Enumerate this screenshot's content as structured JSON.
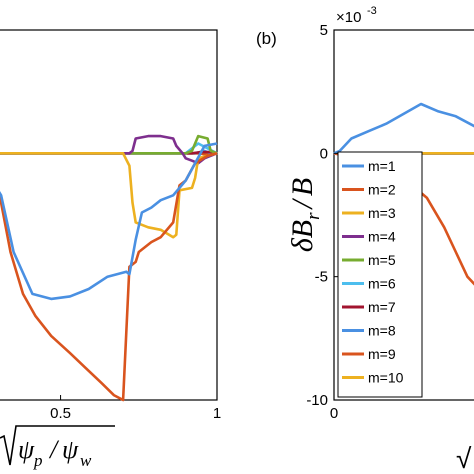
{
  "chart_data": [
    {
      "type": "line",
      "panel": "a",
      "xlim": [
        0.3,
        1.0
      ],
      "ylim": [
        -10,
        5
      ],
      "x_ticks": [
        "0.5",
        "1"
      ],
      "x_tick_values": [
        0.5,
        1.0
      ],
      "xlabel_parts": {
        "radical": "√",
        "num": "ψ",
        "num_sub": "p",
        "den": "ψ",
        "den_sub": "w"
      },
      "series": [
        {
          "name": "m=1",
          "color": "#4a90e2",
          "x": [
            0.3,
            0.31,
            0.35,
            0.41,
            0.47,
            0.53,
            0.59,
            0.65,
            0.71,
            0.72,
            0.74,
            0.76,
            0.79,
            0.82,
            0.86,
            0.88,
            0.9,
            0.93,
            0.96,
            1.0
          ],
          "y": [
            -1.5,
            -1.7,
            -4.0,
            -5.7,
            -5.9,
            -5.8,
            -5.5,
            -5.0,
            -4.8,
            -4.9,
            -3.5,
            -2.4,
            -2.2,
            -1.9,
            -1.7,
            -1.4,
            -1.1,
            -0.4,
            0.3,
            0.4
          ]
        },
        {
          "name": "m=2",
          "color": "#d9541e",
          "x": [
            0.3,
            0.31,
            0.34,
            0.38,
            0.42,
            0.47,
            0.53,
            0.58,
            0.63,
            0.67,
            0.7,
            0.72,
            0.74,
            0.75,
            0.79,
            0.82,
            0.86,
            0.88,
            0.9,
            0.93,
            0.97,
            1.0
          ],
          "y": [
            -1.6,
            -2.0,
            -4.0,
            -5.7,
            -6.6,
            -7.4,
            -8.1,
            -8.7,
            -9.3,
            -9.8,
            -10.0,
            -4.6,
            -4.4,
            -4.0,
            -3.6,
            -3.4,
            -2.8,
            -1.3,
            -1.1,
            -0.4,
            -0.1,
            0.0
          ]
        },
        {
          "name": "m=3",
          "color": "#edb120",
          "x": [
            0.3,
            0.68,
            0.7,
            0.72,
            0.73,
            0.74,
            0.78,
            0.82,
            0.86,
            0.87,
            0.88,
            0.92,
            0.93,
            0.94,
            0.97,
            1.0
          ],
          "y": [
            0.0,
            0.0,
            0.0,
            -0.5,
            -2.0,
            -2.8,
            -3.0,
            -3.1,
            -3.4,
            -3.3,
            -1.5,
            -1.4,
            -1.0,
            -0.2,
            -0.1,
            0.0
          ]
        },
        {
          "name": "m=4",
          "color": "#7e2f8e",
          "x": [
            0.3,
            0.72,
            0.73,
            0.74,
            0.78,
            0.82,
            0.86,
            0.87,
            0.89,
            0.9,
            0.92,
            0.94,
            0.96,
            0.98,
            1.0
          ],
          "y": [
            0.0,
            0.0,
            0.1,
            0.6,
            0.7,
            0.7,
            0.6,
            0.3,
            0.0,
            -0.2,
            -0.3,
            -0.4,
            -0.2,
            -0.1,
            0.0
          ]
        },
        {
          "name": "m=5",
          "color": "#77ac30",
          "x": [
            0.3,
            0.9,
            0.92,
            0.94,
            0.97,
            0.98,
            1.0
          ],
          "y": [
            0.0,
            0.0,
            0.1,
            0.7,
            0.6,
            0.1,
            0.0
          ]
        },
        {
          "name": "m=6",
          "color": "#4dbeee",
          "x": [
            0.3,
            0.9,
            0.92,
            0.94,
            0.97,
            1.0
          ],
          "y": [
            0.0,
            0.0,
            0.2,
            0.4,
            0.2,
            0.0
          ]
        },
        {
          "name": "m=7",
          "color": "#a2142f",
          "x": [
            0.3,
            0.92,
            0.95,
            0.98,
            1.0
          ],
          "y": [
            0.0,
            0.0,
            0.05,
            0.05,
            0.0
          ]
        },
        {
          "name": "m=8",
          "color": "#4a90e2",
          "x": [
            0.3,
            0.93,
            0.96,
            0.98,
            1.0
          ],
          "y": [
            0.0,
            0.0,
            0.1,
            0.0,
            0.0
          ]
        },
        {
          "name": "m=9",
          "color": "#d9541e",
          "x": [
            0.3,
            0.94,
            0.97,
            1.0
          ],
          "y": [
            0.0,
            0.0,
            -0.05,
            0.0
          ]
        },
        {
          "name": "m=10",
          "color": "#edb120",
          "x": [
            0.3,
            0.95,
            0.98,
            1.0
          ],
          "y": [
            0.0,
            0.0,
            0.05,
            0.0
          ]
        }
      ]
    },
    {
      "type": "line",
      "panel": "b",
      "panel_label": "(b)",
      "xlim": [
        0,
        0.25
      ],
      "ylim": [
        -10,
        5
      ],
      "exponent_label": "×10",
      "exponent": "-3",
      "y_ticks": [
        "5",
        "0",
        "-5",
        "-10"
      ],
      "y_tick_values": [
        5,
        0,
        -5,
        -10
      ],
      "x_ticks": [
        "0"
      ],
      "x_tick_values": [
        0
      ],
      "ylabel_parts": {
        "delta": "δ",
        "b": "B",
        "sub": "r",
        "slash": "/",
        "b2": "B"
      },
      "xlabel_visible": "√",
      "legend": [
        "m=1",
        "m=2",
        "m=3",
        "m=4",
        "m=5",
        "m=6",
        "m=7",
        "m=8",
        "m=9",
        "m=10"
      ],
      "legend_placement": "left",
      "series": [
        {
          "name": "m=1",
          "color": "#4a90e2",
          "x": [
            0.0,
            0.01,
            0.03,
            0.06,
            0.09,
            0.12,
            0.15,
            0.18,
            0.21,
            0.25
          ],
          "y": [
            0.0,
            0.1,
            0.6,
            0.9,
            1.2,
            1.6,
            2.0,
            1.7,
            1.5,
            1.0
          ]
        },
        {
          "name": "m=2",
          "color": "#d9541e",
          "x": [
            0.0,
            0.04,
            0.08,
            0.12,
            0.16,
            0.19,
            0.21,
            0.23,
            0.25
          ],
          "y": [
            0.0,
            -0.2,
            -0.6,
            -1.0,
            -1.8,
            -3.0,
            -4.0,
            -5.0,
            -5.5
          ]
        },
        {
          "name": "m=3",
          "color": "#edb120",
          "x": [
            0.0,
            0.25
          ],
          "y": [
            0.0,
            0.0
          ]
        },
        {
          "name": "m=4",
          "color": "#7e2f8e",
          "x": [
            0.0,
            0.25
          ],
          "y": [
            0.0,
            0.0
          ]
        },
        {
          "name": "m=5",
          "color": "#77ac30",
          "x": [
            0.0,
            0.25
          ],
          "y": [
            0.0,
            0.0
          ]
        },
        {
          "name": "m=6",
          "color": "#4dbeee",
          "x": [
            0.0,
            0.25
          ],
          "y": [
            0.0,
            0.0
          ]
        },
        {
          "name": "m=7",
          "color": "#a2142f",
          "x": [
            0.0,
            0.25
          ],
          "y": [
            0.0,
            0.0
          ]
        },
        {
          "name": "m=8",
          "color": "#4a90e2",
          "x": [
            0.0,
            0.25
          ],
          "y": [
            0.0,
            0.0
          ]
        },
        {
          "name": "m=9",
          "color": "#d9541e",
          "x": [
            0.0,
            0.25
          ],
          "y": [
            0.0,
            0.0
          ]
        },
        {
          "name": "m=10",
          "color": "#edb120",
          "x": [
            0.0,
            0.25
          ],
          "y": [
            0.0,
            0.0
          ]
        }
      ]
    }
  ]
}
